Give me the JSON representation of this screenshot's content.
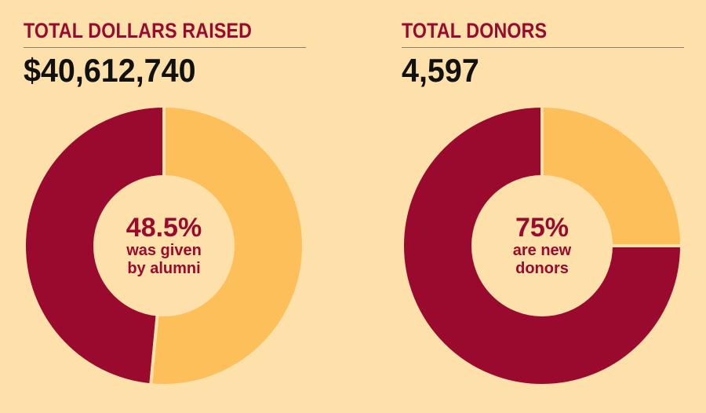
{
  "colors": {
    "background": "#fde0aa",
    "accent": "#9a0a2e",
    "light": "#fdbf5a",
    "text": "#111111"
  },
  "chart_data": [
    {
      "type": "pie",
      "title": "TOTAL DOLLARS RAISED",
      "headline_value": "$40,612,740",
      "center_label": {
        "value": "48.5%",
        "line1": "was given",
        "line2": "by alumni"
      },
      "slices": [
        {
          "value": 48.5,
          "color": "#9a0a2e"
        },
        {
          "value": 51.5,
          "color": "#fdbf5a"
        }
      ]
    },
    {
      "type": "pie",
      "title": "TOTAL DONORS",
      "headline_value": "4,597",
      "center_label": {
        "value": "75%",
        "line1": "are new",
        "line2": "donors"
      },
      "slices": [
        {
          "value": 75,
          "color": "#9a0a2e"
        },
        {
          "value": 25,
          "color": "#fdbf5a"
        }
      ]
    }
  ]
}
